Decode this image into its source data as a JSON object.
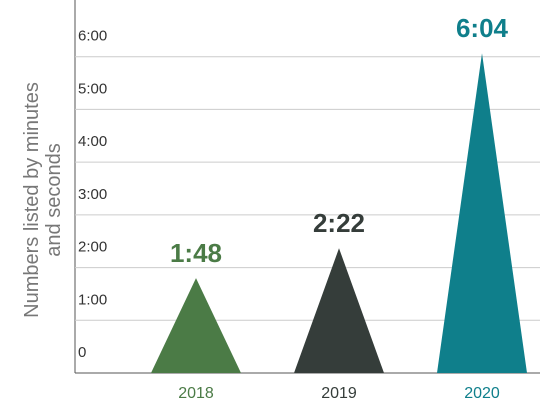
{
  "chart_data": {
    "type": "triangle-bar",
    "ylabel": [
      "Numbers listed by minutes",
      "and seconds"
    ],
    "categories": [
      "2018",
      "2019",
      "2020"
    ],
    "values": [
      108,
      142,
      364
    ],
    "value_labels": [
      "1:48",
      "2:22",
      "6:04"
    ],
    "colors": [
      "#4b7b46",
      "#353d3a",
      "#0f7f8b"
    ],
    "ylim": [
      0,
      420
    ],
    "yticks": [
      0,
      {
        "value": 60,
        "label": "1:00"
      },
      {
        "value": 120,
        "label": "2:00"
      },
      {
        "value": 180,
        "label": "3:00"
      },
      {
        "value": 240,
        "label": "4:00"
      },
      {
        "value": 300,
        "label": "5:00"
      },
      {
        "value": 360,
        "label": "6:00"
      }
    ],
    "grid": true
  }
}
